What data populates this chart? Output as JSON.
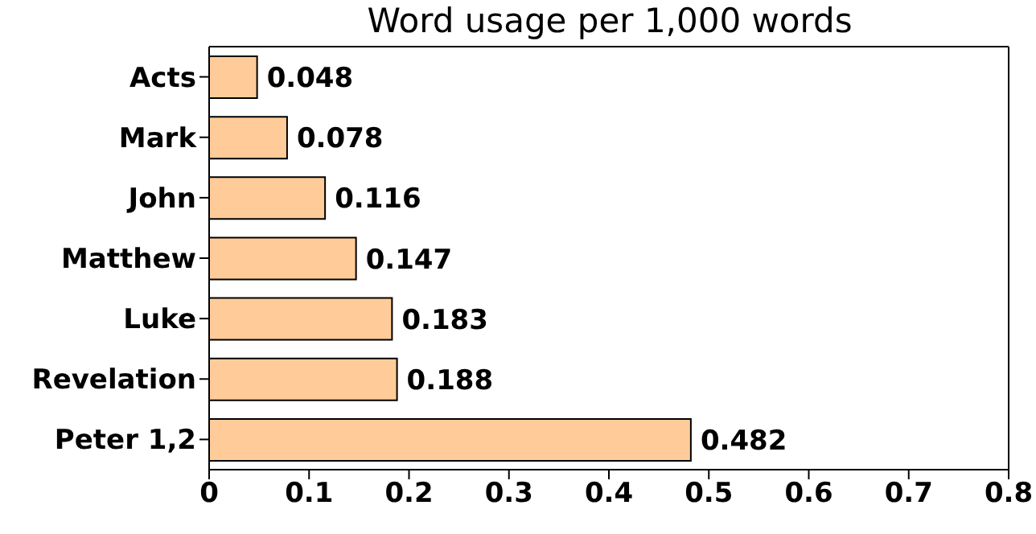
{
  "chart_data": {
    "type": "bar",
    "orientation": "horizontal",
    "title": "Word usage per 1,000 words",
    "categories": [
      "Acts",
      "Mark",
      "John",
      "Matthew",
      "Luke",
      "Revelation",
      "Peter 1,2"
    ],
    "values": [
      0.048,
      0.078,
      0.116,
      0.147,
      0.183,
      0.188,
      0.482
    ],
    "color": "#ffcc99",
    "xlim": [
      0,
      0.8
    ],
    "xticks": [
      0,
      0.1,
      0.2,
      0.3,
      0.4,
      0.5,
      0.6,
      0.7,
      0.8
    ],
    "data_labels": true,
    "grid": false
  }
}
